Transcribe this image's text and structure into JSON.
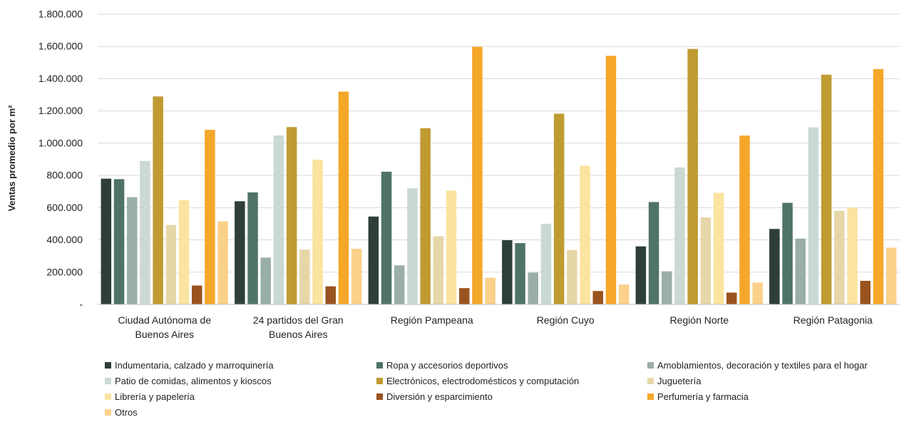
{
  "chart_data": {
    "type": "bar",
    "title": "",
    "xlabel": "",
    "ylabel": "Ventas promedio por m²",
    "ylim": [
      0,
      1800000
    ],
    "yticks": [
      0,
      200000,
      400000,
      600000,
      800000,
      1000000,
      1200000,
      1400000,
      1600000,
      1800000
    ],
    "ytick_labels": [
      "-",
      "200.000",
      "400.000",
      "600.000",
      "800.000",
      "1.000.000",
      "1.200.000",
      "1.400.000",
      "1.600.000",
      "1.800.000"
    ],
    "grid": "horizontal",
    "legend_position": "bottom",
    "categories": [
      [
        "Ciudad Autónoma de",
        "Buenos Aires"
      ],
      [
        "24 partidos del Gran",
        "Buenos Aires"
      ],
      [
        "Región Pampeana"
      ],
      [
        "Región Cuyo"
      ],
      [
        "Región Norte"
      ],
      [
        "Región Patagonia"
      ]
    ],
    "series": [
      {
        "name": "Indumentaria, calzado y marroquinería",
        "color": "#2e3f3a",
        "values": [
          780000,
          640000,
          545000,
          398000,
          360000,
          468000
        ]
      },
      {
        "name": "Ropa y accesorios deportivos",
        "color": "#4f7369",
        "values": [
          777000,
          695000,
          823000,
          380000,
          635000,
          630000
        ]
      },
      {
        "name": "Amoblamientos, decoración y textiles para el hogar",
        "color": "#9aafa9",
        "values": [
          665000,
          290000,
          242000,
          197000,
          205000,
          408000
        ]
      },
      {
        "name": "Patio de comidas, alimentos y kioscos",
        "color": "#cad9d3",
        "values": [
          890000,
          1048000,
          720000,
          500000,
          850000,
          1098000
        ]
      },
      {
        "name": "Electrónicos, electrodomésticos y computación",
        "color": "#bf9b32",
        "values": [
          1290000,
          1100000,
          1093000,
          1183000,
          1585000,
          1425000
        ]
      },
      {
        "name": "Juguetería",
        "color": "#e6d7a8",
        "values": [
          493000,
          340000,
          422000,
          338000,
          540000,
          580000
        ]
      },
      {
        "name": "Librería y papelería",
        "color": "#fbe49f",
        "values": [
          647000,
          897000,
          706000,
          860000,
          692000,
          600000
        ]
      },
      {
        "name": "Diversión y esparcimiento",
        "color": "#9a531f",
        "values": [
          117000,
          112000,
          101000,
          83000,
          73000,
          146000
        ]
      },
      {
        "name": "Perfumería y farmacia",
        "color": "#f5a72a",
        "values": [
          1083000,
          1320000,
          1598000,
          1542000,
          1047000,
          1460000
        ]
      },
      {
        "name": "Otros",
        "color": "#fbd08a",
        "values": [
          515000,
          345000,
          165000,
          123000,
          135000,
          352000
        ]
      }
    ]
  }
}
